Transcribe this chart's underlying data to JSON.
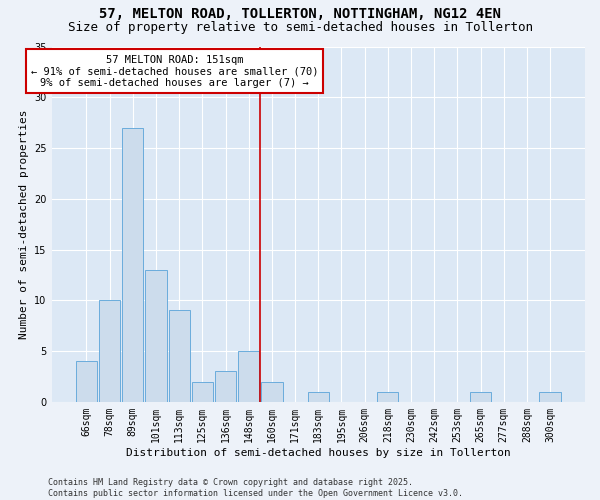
{
  "title": "57, MELTON ROAD, TOLLERTON, NOTTINGHAM, NG12 4EN",
  "subtitle": "Size of property relative to semi-detached houses in Tollerton",
  "xlabel": "Distribution of semi-detached houses by size in Tollerton",
  "ylabel": "Number of semi-detached properties",
  "categories": [
    "66sqm",
    "78sqm",
    "89sqm",
    "101sqm",
    "113sqm",
    "125sqm",
    "136sqm",
    "148sqm",
    "160sqm",
    "171sqm",
    "183sqm",
    "195sqm",
    "206sqm",
    "218sqm",
    "230sqm",
    "242sqm",
    "253sqm",
    "265sqm",
    "277sqm",
    "288sqm",
    "300sqm"
  ],
  "values": [
    4,
    10,
    27,
    13,
    9,
    2,
    3,
    5,
    2,
    0,
    1,
    0,
    0,
    1,
    0,
    0,
    0,
    1,
    0,
    0,
    1
  ],
  "bar_color": "#ccdcec",
  "bar_edgecolor": "#6aacdc",
  "highlight_index": 7,
  "vline_label": "57 MELTON ROAD: 151sqm",
  "annotation_line1": "← 91% of semi-detached houses are smaller (70)",
  "annotation_line2": "9% of semi-detached houses are larger (7) →",
  "vline_color": "#cc0000",
  "annotation_box_edgecolor": "#cc0000",
  "annotation_box_facecolor": "#ffffff",
  "ylim": [
    0,
    35
  ],
  "yticks": [
    0,
    5,
    10,
    15,
    20,
    25,
    30,
    35
  ],
  "footer_line1": "Contains HM Land Registry data © Crown copyright and database right 2025.",
  "footer_line2": "Contains public sector information licensed under the Open Government Licence v3.0.",
  "background_color": "#edf2f9",
  "plot_background_color": "#dce8f5",
  "grid_color": "#ffffff",
  "title_fontsize": 10,
  "subtitle_fontsize": 9,
  "axis_label_fontsize": 8,
  "tick_fontsize": 7,
  "annotation_fontsize": 7.5,
  "footer_fontsize": 6
}
